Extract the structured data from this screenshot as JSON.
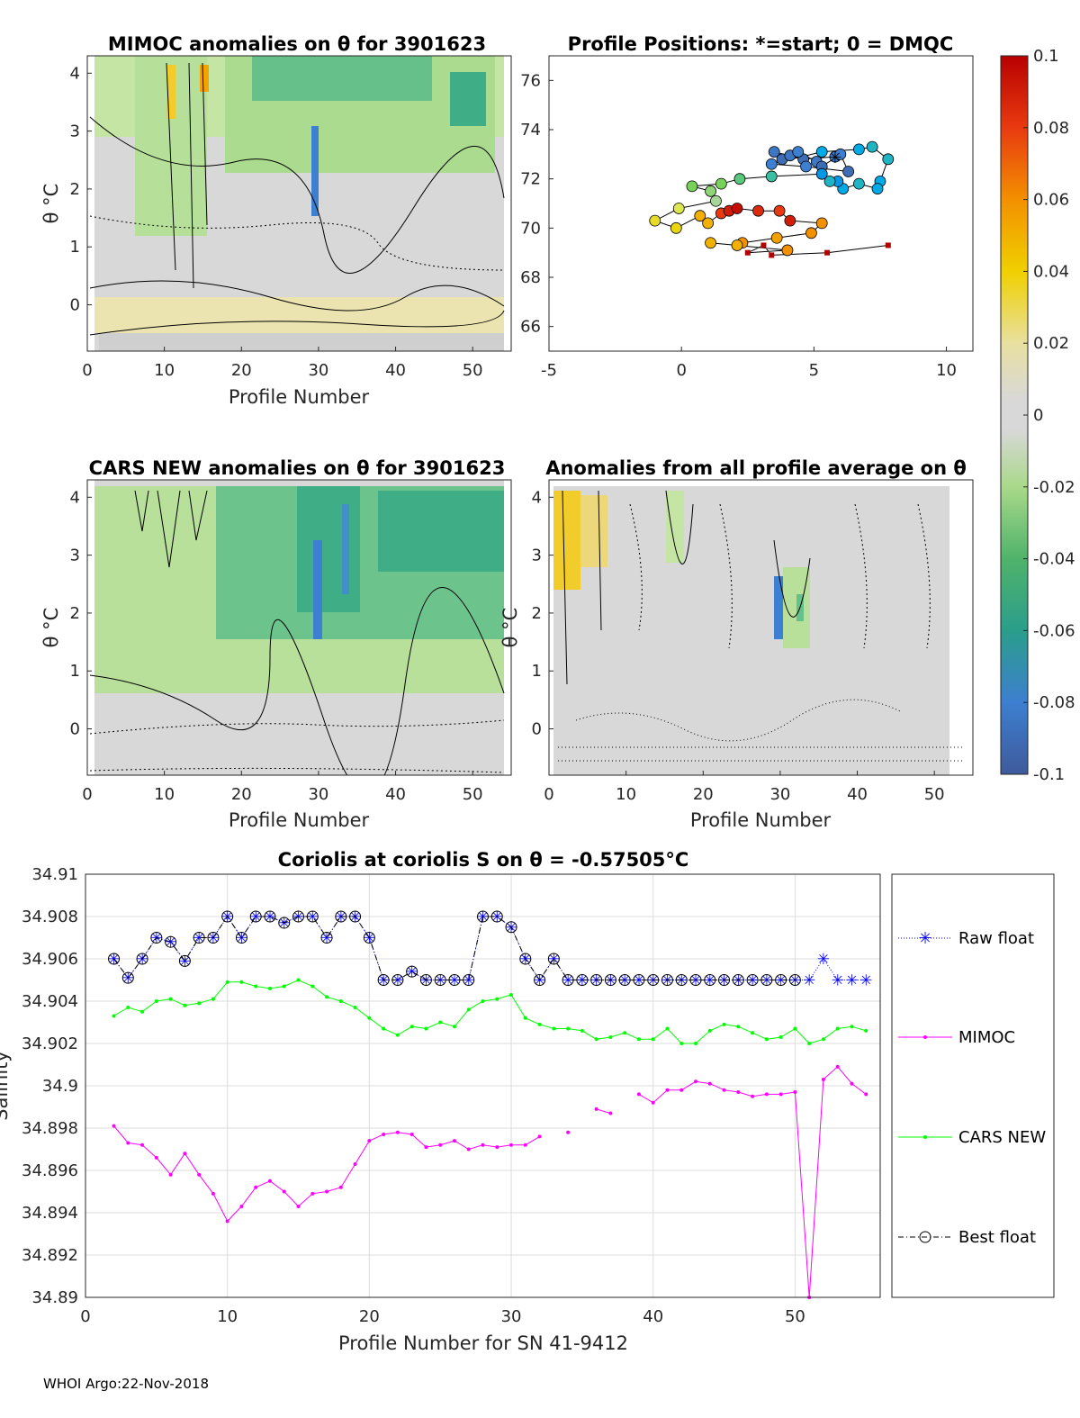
{
  "panels": {
    "mimoc": {
      "title": "MIMOC anomalies on θ  for 3901623",
      "xlabel": "Profile Number",
      "ylabel": "θ °C",
      "xticks": [
        "0",
        "10",
        "20",
        "30",
        "40",
        "50"
      ],
      "yticks": [
        "0",
        "1",
        "2",
        "3",
        "4"
      ],
      "xlim": [
        0,
        55
      ],
      "ylim": [
        -0.8,
        4.3
      ]
    },
    "positions": {
      "title": "Profile Positions: *=start; 0 = DMQC",
      "xticks": [
        "-5",
        "0",
        "5",
        "10"
      ],
      "yticks": [
        "66",
        "68",
        "70",
        "72",
        "74",
        "76"
      ],
      "xlim": [
        -5,
        11
      ],
      "ylim": [
        65,
        77
      ]
    },
    "cars": {
      "title": "CARS NEW anomalies on θ for 3901623",
      "xlabel": "Profile Number",
      "ylabel": "θ °C",
      "xticks": [
        "0",
        "10",
        "20",
        "30",
        "40",
        "50"
      ],
      "yticks": [
        "0",
        "1",
        "2",
        "3",
        "4"
      ],
      "xlim": [
        0,
        55
      ],
      "ylim": [
        -0.8,
        4.3
      ]
    },
    "average": {
      "title": "Anomalies from all profile average on θ",
      "xlabel": "Profile Number",
      "ylabel": "θ °C",
      "xticks": [
        "0",
        "10",
        "20",
        "30",
        "40",
        "50"
      ],
      "yticks": [
        "0",
        "1",
        "2",
        "3",
        "4"
      ],
      "xlim": [
        0,
        55
      ],
      "ylim": [
        -0.8,
        4.3
      ]
    }
  },
  "colorbar": {
    "ticks": [
      "0.1",
      "0.08",
      "0.06",
      "0.04",
      "0.02",
      "0",
      "-0.02",
      "-0.04",
      "-0.06",
      "-0.08",
      "-0.1"
    ],
    "range": [
      -0.1,
      0.1
    ]
  },
  "salinity": {
    "title": "Coriolis at coriolis S on θ = -0.57505°C",
    "xlabel": "Profile Number for SN 41-9412",
    "ylabel": "Salinity",
    "xticks": [
      "0",
      "10",
      "20",
      "30",
      "40",
      "50"
    ],
    "yticks": [
      "34.91",
      "34.908",
      "34.906",
      "34.904",
      "34.902",
      "34.9",
      "34.898",
      "34.896",
      "34.894",
      "34.892",
      "34.89"
    ],
    "legend": [
      "Raw float",
      "MIMOC",
      "CARS NEW",
      "Best float"
    ]
  },
  "footer": "WHOI Argo:22-Nov-2018",
  "colors": {
    "raw": "#0000ff",
    "mimoc": "#ff00ff",
    "cars": "#00ff00",
    "best": "#000000",
    "grid": "#dcdcdc"
  },
  "chart_data": [
    {
      "type": "line",
      "title": "Coriolis at coriolis S on θ = -0.57505°C",
      "xlabel": "Profile Number for SN 41-9412",
      "ylabel": "Salinity",
      "xlim": [
        0,
        56
      ],
      "ylim": [
        34.89,
        34.91
      ],
      "x": [
        2,
        3,
        4,
        5,
        6,
        7,
        8,
        9,
        10,
        11,
        12,
        13,
        14,
        15,
        16,
        17,
        18,
        19,
        20,
        21,
        22,
        23,
        24,
        25,
        26,
        27,
        28,
        29,
        30,
        31,
        32,
        33,
        34,
        35,
        36,
        37,
        38,
        39,
        40,
        41,
        42,
        43,
        44,
        45,
        46,
        47,
        48,
        49,
        50,
        51,
        52,
        53,
        54,
        55
      ],
      "series": [
        {
          "name": "Raw float",
          "values": [
            34.906,
            34.9051,
            34.906,
            34.907,
            34.9068,
            34.9059,
            34.907,
            34.907,
            34.908,
            34.907,
            34.908,
            34.908,
            34.9077,
            34.908,
            34.908,
            34.907,
            34.908,
            34.908,
            34.907,
            34.905,
            34.905,
            34.9054,
            34.905,
            34.905,
            34.905,
            34.905,
            34.908,
            34.908,
            34.9075,
            34.906,
            34.905,
            34.906,
            34.905,
            34.905,
            34.905,
            34.905,
            34.905,
            34.905,
            34.905,
            34.905,
            34.905,
            34.905,
            34.905,
            34.905,
            34.905,
            34.905,
            34.905,
            34.905,
            34.905,
            34.905,
            34.906,
            34.905,
            34.905,
            34.905
          ]
        },
        {
          "name": "MIMOC",
          "values": [
            34.8981,
            34.8973,
            34.8972,
            34.8966,
            34.8958,
            34.8968,
            34.8958,
            34.8949,
            34.8936,
            34.8943,
            34.8952,
            34.8955,
            34.895,
            34.8943,
            34.8949,
            34.895,
            34.8952,
            34.8963,
            34.8974,
            34.8977,
            34.8978,
            34.8977,
            34.8971,
            34.8972,
            34.8974,
            34.897,
            34.8972,
            34.8971,
            34.8972,
            34.8972,
            34.8976,
            null,
            34.8978,
            null,
            34.8989,
            34.8987,
            null,
            34.8996,
            34.8992,
            34.8998,
            34.8998,
            34.9002,
            34.9001,
            34.8998,
            34.8997,
            34.8995,
            34.8996,
            34.8996,
            34.8997,
            34.89,
            34.9003,
            34.9009,
            34.9001,
            34.8996
          ]
        },
        {
          "name": "CARS NEW",
          "values": [
            34.9033,
            34.9037,
            34.9035,
            34.904,
            34.9041,
            34.9038,
            34.9039,
            34.9041,
            34.9049,
            34.9049,
            34.9047,
            34.9046,
            34.9047,
            34.905,
            34.9047,
            34.9042,
            34.904,
            34.9037,
            34.9032,
            34.9027,
            34.9024,
            34.9028,
            34.9027,
            34.903,
            34.9028,
            34.9036,
            34.904,
            34.9041,
            34.9043,
            34.9032,
            34.9029,
            34.9027,
            34.9027,
            34.9026,
            34.9022,
            34.9023,
            34.9025,
            34.9022,
            34.9022,
            34.9027,
            34.902,
            34.902,
            34.9026,
            34.9029,
            34.9028,
            34.9025,
            34.9022,
            34.9023,
            34.9027,
            34.902,
            34.9022,
            34.9027,
            34.9028,
            34.9026
          ]
        },
        {
          "name": "Best float",
          "values": [
            34.906,
            34.9051,
            34.906,
            34.907,
            34.9068,
            34.9059,
            34.907,
            34.907,
            34.908,
            34.907,
            34.908,
            34.908,
            34.9077,
            34.908,
            34.908,
            34.907,
            34.908,
            34.908,
            34.907,
            34.905,
            34.905,
            34.9054,
            34.905,
            34.905,
            34.905,
            34.905,
            34.908,
            34.908,
            34.9075,
            34.906,
            34.905,
            34.906,
            34.905,
            34.905,
            34.905,
            34.905,
            34.905,
            34.905,
            34.905,
            34.905,
            34.905,
            34.905,
            34.905,
            34.905,
            34.905,
            34.905,
            34.905,
            34.905,
            34.905,
            null,
            null,
            null,
            null,
            null
          ]
        }
      ]
    },
    {
      "type": "scatter",
      "title": "Profile Positions: *=start; 0 = DMQC",
      "xlim": [
        -5,
        11
      ],
      "ylim": [
        65,
        77
      ],
      "start": [
        5.8,
        72.9
      ],
      "points": [
        {
          "x": 5.8,
          "y": 72.9,
          "v": -0.08
        },
        {
          "x": 4.6,
          "y": 72.8,
          "v": -0.09
        },
        {
          "x": 3.5,
          "y": 73.1,
          "v": -0.085
        },
        {
          "x": 3.8,
          "y": 72.8,
          "v": -0.09
        },
        {
          "x": 4.1,
          "y": 72.95,
          "v": -0.085
        },
        {
          "x": 4.4,
          "y": 73.1,
          "v": -0.08
        },
        {
          "x": 5.1,
          "y": 72.7,
          "v": -0.085
        },
        {
          "x": 5.3,
          "y": 72.5,
          "v": -0.09
        },
        {
          "x": 6.0,
          "y": 73.0,
          "v": -0.08
        },
        {
          "x": 6.3,
          "y": 72.3,
          "v": -0.09
        },
        {
          "x": 4.7,
          "y": 72.5,
          "v": -0.08
        },
        {
          "x": 3.4,
          "y": 72.6,
          "v": -0.08
        },
        {
          "x": 5.3,
          "y": 73.1,
          "v": -0.04
        },
        {
          "x": 6.7,
          "y": 73.2,
          "v": -0.04
        },
        {
          "x": 7.2,
          "y": 73.3,
          "v": -0.035
        },
        {
          "x": 7.8,
          "y": 72.8,
          "v": -0.035
        },
        {
          "x": 7.5,
          "y": 71.9,
          "v": -0.04
        },
        {
          "x": 7.4,
          "y": 71.6,
          "v": -0.04
        },
        {
          "x": 6.7,
          "y": 71.8,
          "v": -0.035
        },
        {
          "x": 6.1,
          "y": 71.6,
          "v": -0.04
        },
        {
          "x": 5.9,
          "y": 71.9,
          "v": -0.045
        },
        {
          "x": 5.6,
          "y": 71.9,
          "v": -0.035
        },
        {
          "x": 5.3,
          "y": 72.2,
          "v": -0.045
        },
        {
          "x": 3.4,
          "y": 72.1,
          "v": -0.03
        },
        {
          "x": 2.2,
          "y": 72.0,
          "v": -0.025
        },
        {
          "x": 1.5,
          "y": 71.8,
          "v": -0.02
        },
        {
          "x": 0.4,
          "y": 71.7,
          "v": -0.02
        },
        {
          "x": 1.1,
          "y": 71.5,
          "v": -0.015
        },
        {
          "x": 1.3,
          "y": 71.1,
          "v": -0.01
        },
        {
          "x": -0.1,
          "y": 70.8,
          "v": 0.02
        },
        {
          "x": -1.0,
          "y": 70.3,
          "v": 0.03
        },
        {
          "x": -0.2,
          "y": 70.0,
          "v": 0.035
        },
        {
          "x": 0.7,
          "y": 70.5,
          "v": 0.05
        },
        {
          "x": 1.0,
          "y": 70.2,
          "v": 0.05
        },
        {
          "x": 1.5,
          "y": 70.6,
          "v": 0.08
        },
        {
          "x": 1.8,
          "y": 70.7,
          "v": 0.09
        },
        {
          "x": 2.1,
          "y": 70.8,
          "v": 0.095
        },
        {
          "x": 2.9,
          "y": 70.7,
          "v": 0.085
        },
        {
          "x": 3.7,
          "y": 70.7,
          "v": 0.08
        },
        {
          "x": 4.1,
          "y": 70.3,
          "v": 0.09
        },
        {
          "x": 5.3,
          "y": 70.2,
          "v": 0.06
        },
        {
          "x": 4.9,
          "y": 69.8,
          "v": 0.06
        },
        {
          "x": 3.6,
          "y": 69.6,
          "v": 0.055
        },
        {
          "x": 2.3,
          "y": 69.4,
          "v": 0.06
        },
        {
          "x": 2.1,
          "y": 69.3,
          "v": 0.05
        },
        {
          "x": 1.1,
          "y": 69.4,
          "v": 0.05
        },
        {
          "x": 4.0,
          "y": 69.1,
          "v": 0.06
        }
      ],
      "dmqc": [
        [
          2.5,
          69.0
        ],
        [
          3.1,
          69.3
        ],
        [
          3.4,
          68.9
        ],
        [
          5.5,
          69.0
        ],
        [
          7.8,
          69.3
        ]
      ]
    }
  ]
}
